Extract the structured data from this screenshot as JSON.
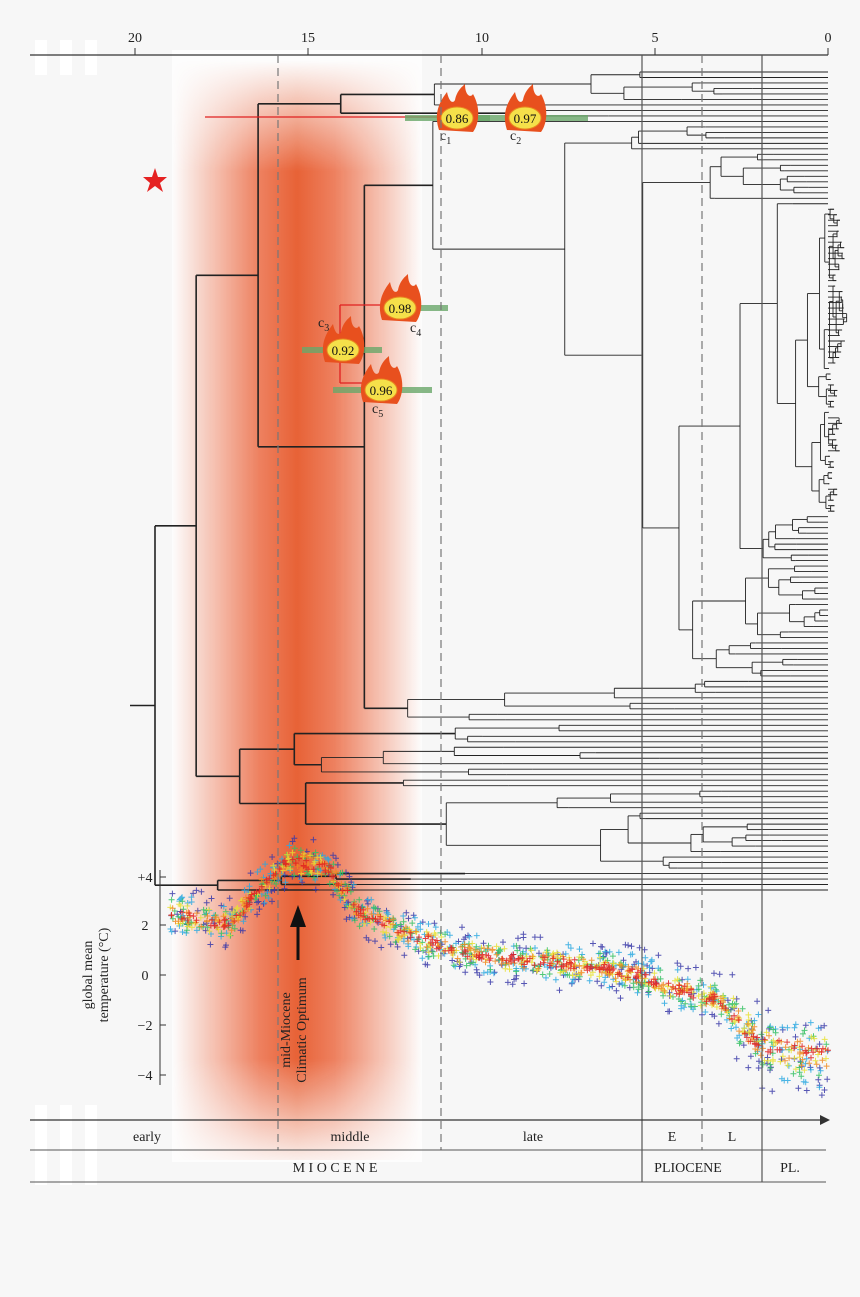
{
  "figure": {
    "time_axis_ticks": [
      "20",
      "15",
      "10",
      "5",
      "0"
    ],
    "nodes": [
      {
        "support": "0.86",
        "label": "c",
        "subscript": "1"
      },
      {
        "support": "0.97",
        "label": "c",
        "subscript": "2"
      },
      {
        "support": "0.92",
        "label": "c",
        "subscript": "3"
      },
      {
        "support": "0.98",
        "label": "c",
        "subscript": "4"
      },
      {
        "support": "0.96",
        "label": "c",
        "subscript": "5"
      }
    ],
    "temperature_axis": {
      "title": [
        "global mean",
        "temperature (°C)"
      ],
      "ticks": [
        "+4",
        "2",
        "0",
        "−2",
        "−4"
      ]
    },
    "annotation": [
      "mid-Miocene",
      "Climatic Optimum"
    ],
    "periods": {
      "subepochs": [
        "early",
        "middle",
        "late",
        "E",
        "L"
      ],
      "epochs": [
        "M I O C E N E",
        "PLIOCENE",
        "PL."
      ]
    }
  }
}
